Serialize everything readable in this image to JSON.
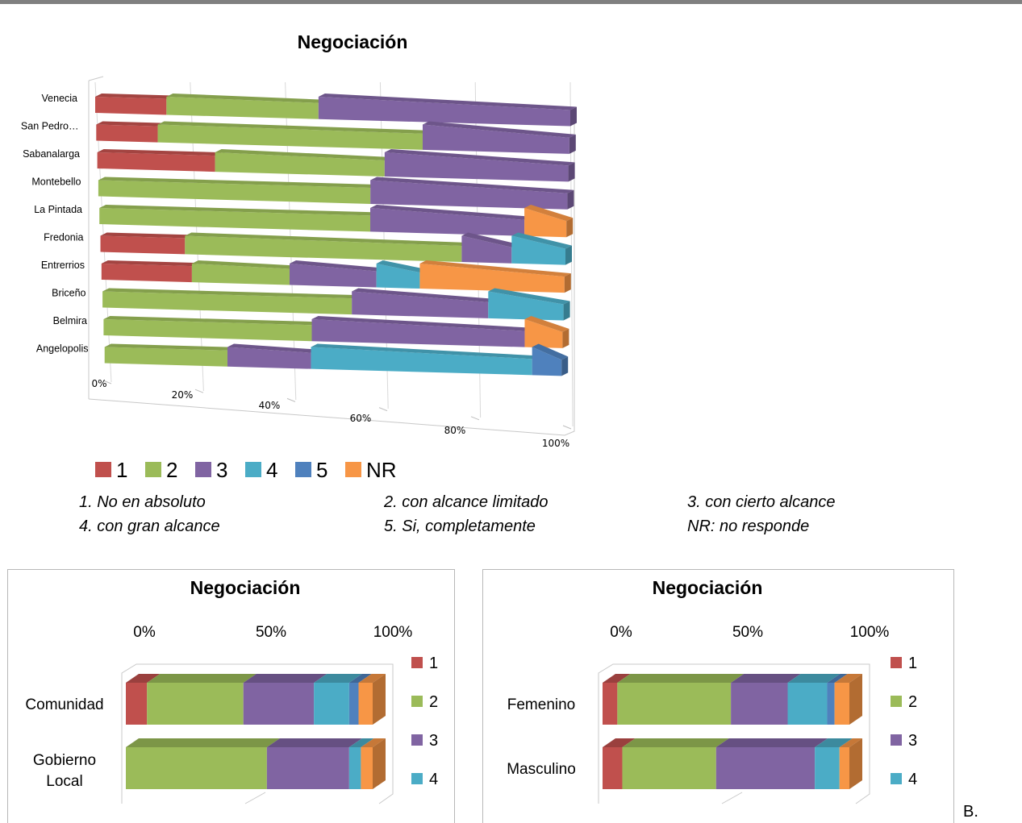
{
  "colors": {
    "1": "#c0504d",
    "2": "#9bbb59",
    "3": "#8064a2",
    "4": "#4bacc6",
    "5": "#4f81bd",
    "NR": "#f79646"
  },
  "chart_data": [
    {
      "type": "bar",
      "orientation": "horizontal",
      "stacked": "percent",
      "title": "Negociación",
      "categories": [
        "Venecia",
        "San Pedro…",
        "Sabanalarga",
        "Montebello",
        "La Pintada",
        "Fredonia",
        "Entrerrios",
        "Briceño",
        "Belmira",
        "Angelopolis"
      ],
      "series": [
        {
          "name": "1",
          "values": [
            15,
            13,
            25,
            0,
            0,
            22,
            25,
            0,
            0,
            0
          ]
        },
        {
          "name": "2",
          "values": [
            32,
            56,
            36,
            58,
            58,
            72,
            27,
            53,
            44,
            25
          ]
        },
        {
          "name": "3",
          "values": [
            53,
            31,
            39,
            42,
            33,
            13,
            24,
            29,
            45,
            17
          ]
        },
        {
          "name": "4",
          "values": [
            0,
            0,
            0,
            0,
            0,
            14,
            12,
            16,
            0,
            45
          ]
        },
        {
          "name": "5",
          "values": [
            0,
            0,
            0,
            0,
            0,
            0,
            0,
            0,
            0,
            6
          ]
        },
        {
          "name": "NR",
          "values": [
            0,
            0,
            0,
            0,
            9,
            0,
            40,
            0,
            8,
            0
          ]
        }
      ],
      "xticks": [
        "0%",
        "20%",
        "40%",
        "60%",
        "80%",
        "100%"
      ],
      "legend": [
        "1",
        "2",
        "3",
        "4",
        "5",
        "NR"
      ],
      "legend_position": "bottom"
    },
    {
      "type": "bar",
      "orientation": "horizontal",
      "stacked": "percent",
      "title": "Negociación",
      "categories": [
        "Comunidad",
        "Gobierno Local"
      ],
      "series": [
        {
          "name": "1",
          "values": [
            9,
            0
          ]
        },
        {
          "name": "2",
          "values": [
            41,
            60
          ]
        },
        {
          "name": "3",
          "values": [
            30,
            35
          ]
        },
        {
          "name": "4",
          "values": [
            15,
            5
          ]
        },
        {
          "name": "5",
          "values": [
            4,
            0
          ]
        },
        {
          "name": "NR",
          "values": [
            6,
            5
          ]
        }
      ],
      "xticks": [
        "0%",
        "50%",
        "100%"
      ],
      "legend": [
        "1",
        "2",
        "3",
        "4"
      ],
      "legend_position": "right"
    },
    {
      "type": "bar",
      "orientation": "horizontal",
      "stacked": "percent",
      "title": "Negociación",
      "categories": [
        "Femenino",
        "Masculino"
      ],
      "series": [
        {
          "name": "1",
          "values": [
            6,
            8
          ]
        },
        {
          "name": "2",
          "values": [
            46,
            38
          ]
        },
        {
          "name": "3",
          "values": [
            23,
            40
          ]
        },
        {
          "name": "4",
          "values": [
            16,
            10
          ]
        },
        {
          "name": "5",
          "values": [
            3,
            0
          ]
        },
        {
          "name": "NR",
          "values": [
            6,
            4
          ]
        }
      ],
      "xticks": [
        "0%",
        "50%",
        "100%"
      ],
      "legend": [
        "1",
        "2",
        "3",
        "4"
      ],
      "legend_position": "right"
    }
  ],
  "scale_legend": [
    "1. No en absoluto",
    "2. con alcance limitado",
    "3. con cierto alcance",
    "4. con gran alcance",
    "5. Si, completamente",
    "NR: no responde"
  ],
  "trailing_text": "B."
}
